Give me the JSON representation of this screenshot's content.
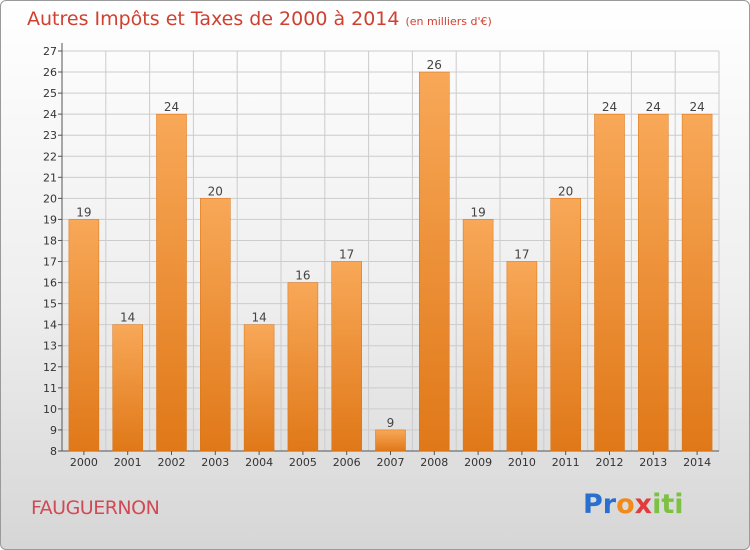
{
  "title": "Autres Impôts et Taxes de 2000 à 2014",
  "subtitle": "(en milliers d'€)",
  "city": "FAUGUERNON",
  "logo": {
    "p1": "Pr",
    "p2": "o",
    "p3": "x",
    "p4": "iti"
  },
  "colors": {
    "bar_top": "#f8a858",
    "bar_bottom": "#e07818",
    "grid": "#cccccc",
    "title": "#d04030"
  },
  "chart_data": {
    "type": "bar",
    "title": "Autres Impôts et Taxes de 2000 à 2014",
    "subtitle": "(en milliers d'€)",
    "xlabel": "",
    "ylabel": "",
    "categories": [
      "2000",
      "2001",
      "2002",
      "2003",
      "2004",
      "2005",
      "2006",
      "2007",
      "2008",
      "2009",
      "2010",
      "2011",
      "2012",
      "2013",
      "2014"
    ],
    "values": [
      19,
      14,
      24,
      20,
      14,
      16,
      17,
      9,
      26,
      19,
      17,
      20,
      24,
      24,
      24
    ],
    "ylim": [
      8,
      27
    ],
    "ytick_step": 1,
    "grid": true,
    "legend": "none"
  }
}
